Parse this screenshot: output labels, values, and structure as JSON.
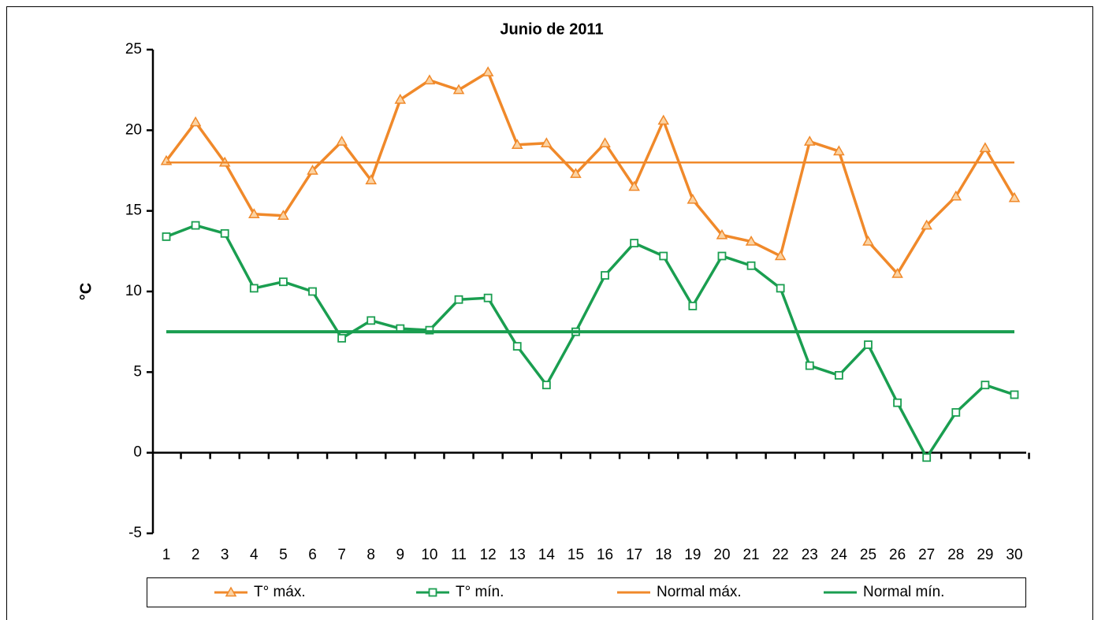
{
  "chart_data": {
    "type": "line",
    "title": "Junio de 2011",
    "y_label": "°C",
    "categories": [
      "1",
      "2",
      "3",
      "4",
      "5",
      "6",
      "7",
      "8",
      "9",
      "10",
      "11",
      "12",
      "13",
      "14",
      "15",
      "16",
      "17",
      "18",
      "19",
      "20",
      "21",
      "22",
      "23",
      "24",
      "25",
      "26",
      "27",
      "28",
      "29",
      "30"
    ],
    "series": [
      {
        "name": "T° máx.",
        "color": "#f0892a",
        "marker": "triangle",
        "values": [
          18.1,
          20.5,
          18.0,
          14.8,
          14.7,
          17.5,
          19.3,
          16.9,
          21.9,
          23.1,
          22.5,
          23.6,
          19.1,
          19.2,
          17.3,
          19.2,
          16.5,
          20.6,
          15.7,
          13.5,
          13.1,
          12.2,
          19.3,
          18.7,
          13.1,
          11.1,
          14.1,
          15.9,
          18.9,
          15.8
        ]
      },
      {
        "name": "T° mín.",
        "color": "#1a9e50",
        "marker": "square",
        "values": [
          13.4,
          14.1,
          13.6,
          10.2,
          10.6,
          10.0,
          7.1,
          8.2,
          7.7,
          7.6,
          9.5,
          9.6,
          6.6,
          4.2,
          7.5,
          11.0,
          13.0,
          12.2,
          9.1,
          12.2,
          11.6,
          10.2,
          5.4,
          4.8,
          6.7,
          3.1,
          -0.3,
          2.5,
          4.2,
          3.6
        ]
      },
      {
        "name": "Normal máx.",
        "color": "#f0892a",
        "marker": "none",
        "values": [
          18,
          18,
          18,
          18,
          18,
          18,
          18,
          18,
          18,
          18,
          18,
          18,
          18,
          18,
          18,
          18,
          18,
          18,
          18,
          18,
          18,
          18,
          18,
          18,
          18,
          18,
          18,
          18,
          18,
          18
        ]
      },
      {
        "name": "Normal mín.",
        "color": "#1a9e50",
        "marker": "none",
        "values": [
          7.5,
          7.5,
          7.5,
          7.5,
          7.5,
          7.5,
          7.5,
          7.5,
          7.5,
          7.5,
          7.5,
          7.5,
          7.5,
          7.5,
          7.5,
          7.5,
          7.5,
          7.5,
          7.5,
          7.5,
          7.5,
          7.5,
          7.5,
          7.5,
          7.5,
          7.5,
          7.5,
          7.5,
          7.5,
          7.5
        ]
      }
    ],
    "ylim": [
      -5,
      25
    ],
    "yticks": [
      -5,
      0,
      5,
      10,
      15,
      20,
      25
    ],
    "grid": false,
    "legend": "bottom"
  }
}
